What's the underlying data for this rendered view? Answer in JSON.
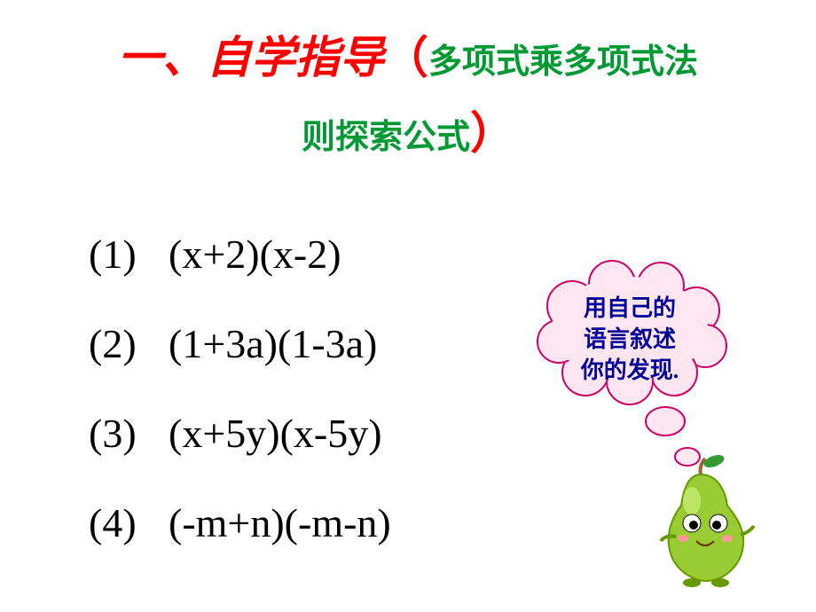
{
  "heading": {
    "main": "一、自学指导",
    "open_paren": "（",
    "close_paren": "）",
    "subtitle_part1": "多项式乘多项式法",
    "subtitle_part2": "则探索公式",
    "main_color": "#ff0000",
    "paren_color": "#ff0000",
    "subtitle_color": "#009933"
  },
  "problems": [
    {
      "num": "(1)",
      "expr": "(x+2)(x-2)"
    },
    {
      "num": "(2)",
      "expr": "(1+3a)(1-3a)"
    },
    {
      "num": "(3)",
      "expr": "(x+5y)(x-5y)"
    },
    {
      "num": "(4)",
      "expr": "(-m+n)(-m-n)"
    }
  ],
  "cloud": {
    "line1": "用自己的",
    "line2": "语言叙述",
    "line3": "你的发现.",
    "text_color": "#000099",
    "fill_color": "#ffe6f0",
    "border_color": "#cc0066"
  },
  "pear": {
    "body_color": "#99cc33",
    "body_shadow": "#669900",
    "leaf_color": "#339933",
    "stem_color": "#996633",
    "eye_white": "#ffffff",
    "eye_black": "#000000",
    "blush_color": "#ff9999"
  }
}
